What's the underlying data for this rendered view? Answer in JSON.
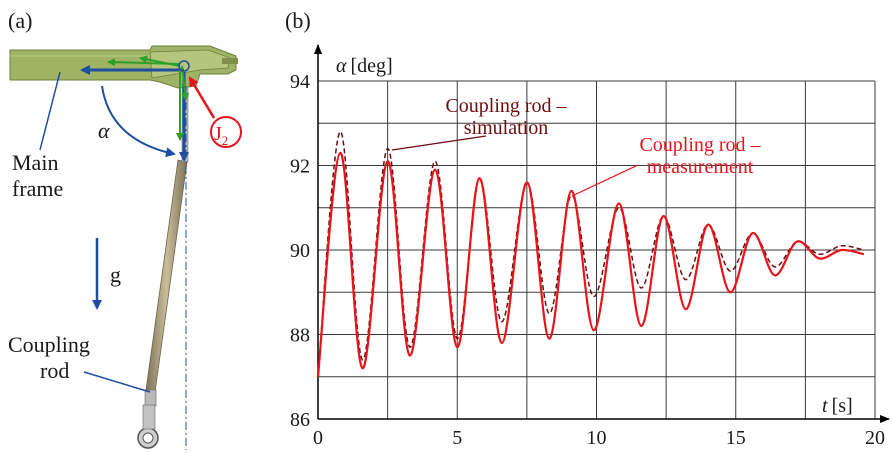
{
  "panel_a": {
    "label": "(a)",
    "alpha_symbol": "α",
    "main_frame_line1": "Main",
    "main_frame_line2": "frame",
    "gravity_label": "g",
    "coupling_rod_line1": "Coupling",
    "coupling_rod_line2": "rod",
    "joint_label": "J",
    "joint_subscript": "2"
  },
  "panel_b": {
    "label": "(b)"
  },
  "colors": {
    "measurement": "#e8141b",
    "simulation": "#6b0d10",
    "axis": "#000000",
    "grid": "#3a3a3a",
    "frame_green": "#9fb364",
    "rod": "#a89a78",
    "arrow_blue": "#1f4e9e",
    "arrow_green": "#2ea02a",
    "joint_red": "#e8141b"
  },
  "chart_data": {
    "type": "line",
    "ylabel_symbol": "α",
    "ylabel_unit": "[deg]",
    "xlabel_symbol": "t",
    "xlabel_unit": "[s]",
    "xlim": [
      0,
      20
    ],
    "ylim": [
      86,
      94
    ],
    "xticks": [
      0,
      5,
      10,
      15,
      20
    ],
    "yticks": [
      86,
      88,
      90,
      92,
      94
    ],
    "grid": true,
    "grid_x_step": 2.5,
    "grid_y_step": 1,
    "series": [
      {
        "name": "Coupling rod – measurement",
        "style": "solid",
        "color": "#e8141b",
        "x": [
          0,
          0.8,
          1.6,
          2.5,
          3.3,
          4.2,
          5.0,
          5.8,
          6.6,
          7.5,
          8.3,
          9.1,
          9.9,
          10.8,
          11.6,
          12.4,
          13.2,
          14.0,
          14.8,
          15.6,
          16.4,
          17.2,
          18.0,
          18.8,
          19.6
        ],
        "y": [
          87.0,
          92.3,
          87.2,
          92.1,
          87.5,
          91.9,
          87.7,
          91.7,
          87.8,
          91.6,
          87.9,
          91.4,
          88.1,
          91.1,
          88.2,
          90.8,
          88.6,
          90.6,
          89.0,
          90.4,
          89.4,
          90.2,
          89.8,
          90.0,
          89.9
        ]
      },
      {
        "name": "Coupling rod – simulation",
        "style": "dashed",
        "color": "#6b0d10",
        "x": [
          0,
          0.8,
          1.6,
          2.5,
          3.3,
          4.2,
          5.0,
          5.8,
          6.6,
          7.5,
          8.3,
          9.1,
          9.9,
          10.8,
          11.6,
          12.4,
          13.2,
          14.0,
          14.8,
          15.6,
          16.4,
          17.2,
          18.0,
          18.8,
          19.6
        ],
        "y": [
          87.0,
          92.8,
          87.4,
          92.4,
          87.7,
          92.1,
          87.9,
          91.7,
          88.3,
          91.6,
          88.5,
          91.3,
          88.9,
          91.0,
          89.1,
          90.8,
          89.3,
          90.6,
          89.5,
          90.4,
          89.6,
          90.2,
          89.9,
          90.1,
          90.0
        ]
      }
    ],
    "annotations": [
      {
        "line1": "Coupling rod –",
        "line2": "simulation",
        "color": "#6b0d10"
      },
      {
        "line1": "Coupling rod –",
        "line2": "measurement",
        "color": "#e8141b"
      }
    ]
  }
}
